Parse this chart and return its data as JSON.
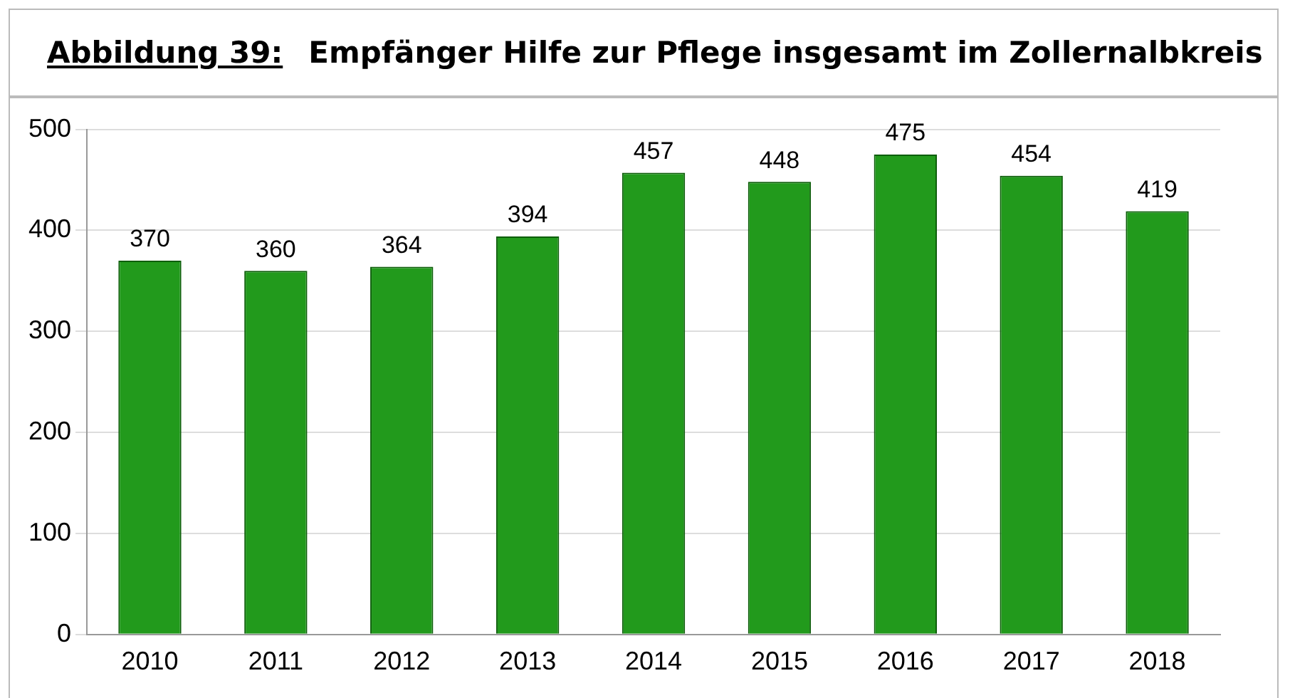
{
  "chart_data": {
    "type": "bar",
    "title": "Abbildung 39:",
    "subtitle": "Empfänger Hilfe zur Pflege insgesamt im Zollernalbkreis",
    "categories": [
      "2010",
      "2011",
      "2012",
      "2013",
      "2014",
      "2015",
      "2016",
      "2017",
      "2018"
    ],
    "values": [
      370,
      360,
      364,
      394,
      457,
      448,
      475,
      454,
      419
    ],
    "color": "#229a1c",
    "ylim": [
      0,
      500
    ],
    "yticks": [
      0,
      100,
      200,
      300,
      400,
      500
    ],
    "grid": "y",
    "legend": false,
    "data_labels": true
  }
}
